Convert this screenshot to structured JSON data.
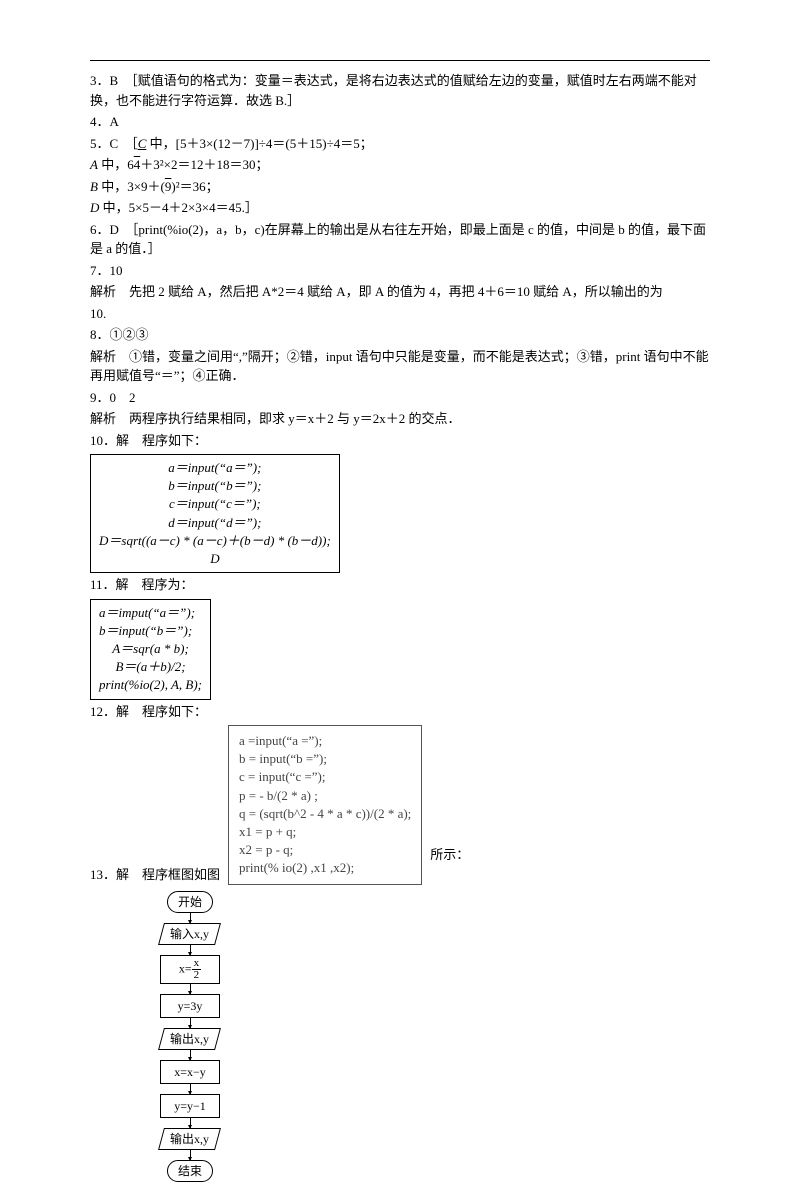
{
  "answers": {
    "q3": {
      "label": "3．B",
      "explain": "［赋值语句的格式为：变量＝表达式，是将右边表达式的值赋给左边的变量，赋值时左右两端不能对换，也不能进行字符运算．故选 B.］"
    },
    "q4": {
      "label": "4．A"
    },
    "q5": {
      "label": "5．C",
      "line1": "［C 中，[5＋3×(12－7)]÷4＝(5＋15)÷4＝5；",
      "lineA": "A 中，6√4＋3²×2＝12＋18＝30；",
      "lineB": "B 中，3×9＋(√9)²＝36；",
      "lineD": "D 中，5×5－4＋2×3×4＝45.］"
    },
    "q6": {
      "label": "6．D",
      "explain": "［print(%io(2)，a，b，c)在屏幕上的输出是从右往左开始，即最上面是 c 的值，中间是 b 的值，最下面是 a 的值．］"
    },
    "q7": {
      "label": "7．10",
      "explain_prefix": "解析　先把 2 赋给 A，然后把 A*2＝4 赋给 A，即 A 的值为 4，再把 4＋6＝10 赋给 A，所以输出的为",
      "explain_last": "10."
    },
    "q8": {
      "label": "8．①②③",
      "explain": "解析　①错，变量之间用“,”隔开；②错，input 语句中只能是变量，而不能是表达式；③错，print 语句中不能再用赋值号“＝”；④正确．"
    },
    "q9": {
      "label": "9．0　2",
      "explain": "解析　两程序执行结果相同，即求 y＝x＋2 与 y＝2x＋2 的交点．"
    },
    "q10": {
      "label": "10．解　程序如下：",
      "code": {
        "l1": "a＝input(“a＝”);",
        "l2": "b＝input(“b＝”);",
        "l3": "c＝input(“c＝”);",
        "l4": "d＝input(“d＝”);",
        "l5": "D＝sqrt((a－c) * (a－c)＋(b－d) * (b－d));",
        "l6": "D"
      }
    },
    "q11": {
      "label": "11．解　程序为：",
      "code": {
        "l1": "a＝imput(“a＝”);",
        "l2": "b＝input(“b＝”);",
        "l3": "A＝sqr(a * b);",
        "l4": "B＝(a＋b)/2;",
        "l5": "print(%io(2), A, B);"
      }
    },
    "q12": {
      "label": "12．解　程序如下：",
      "code": {
        "l1": "a =input(“a =”);",
        "l2": "b = input(“b =”);",
        "l3": "c = input(“c =”);",
        "l4": "p = - b/(2 * a) ;",
        "l5": "q = (sqrt(b^2 - 4 * a * c))/(2 * a);",
        "l6": "x1 = p + q;",
        "l7": "x2 = p - q;",
        "l8": "print(% io(2) ,x1 ,x2);"
      }
    },
    "q13": {
      "label": "13．解　程序框图如图",
      "after": "所示：",
      "flowchart": {
        "start": "开始",
        "input": "输入x,y",
        "s1_num": "x",
        "s1_den": "2",
        "s1_prefix": "x=",
        "s2": "y=3y",
        "out1": "输出x,y",
        "s3": "x=x−y",
        "s4": "y=y−1",
        "out2": "输出x,y",
        "end": "结束"
      }
    }
  },
  "colors": {
    "text": "#000000",
    "bg": "#ffffff",
    "gray_box_text": "#444444",
    "gray_box_border": "#555555"
  }
}
